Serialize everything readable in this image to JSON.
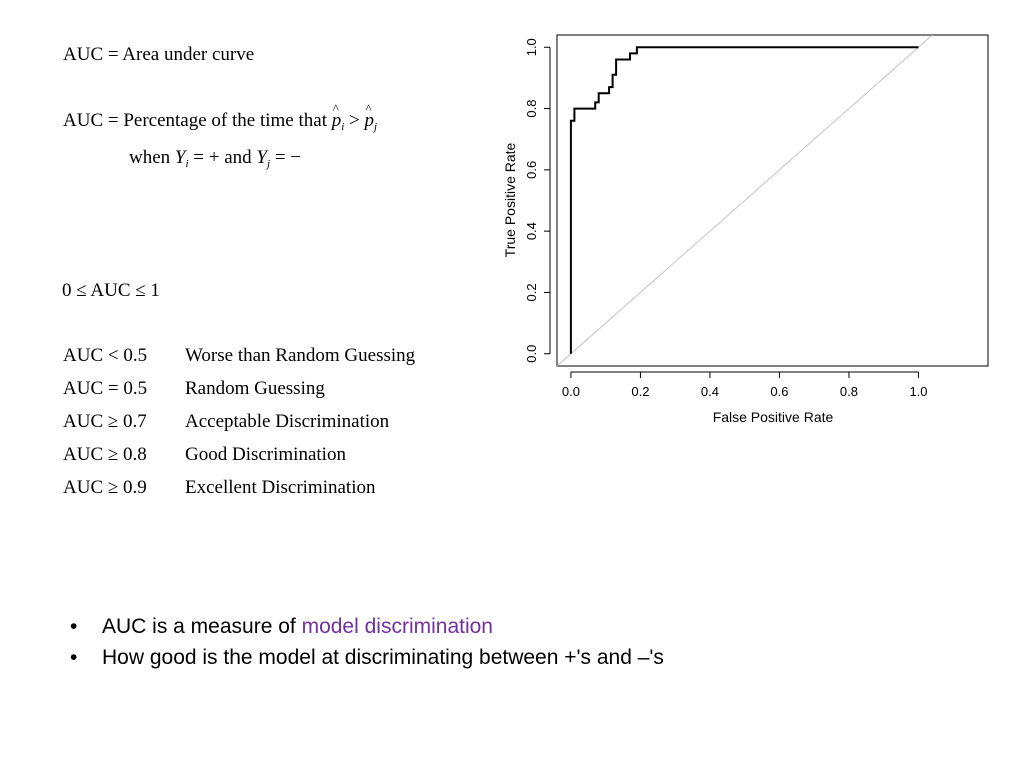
{
  "definitions": {
    "auc_definition": "AUC = Area under curve",
    "percentage_prefix": "AUC = Percentage of the time that",
    "p": "p",
    "sub_i": "i",
    "sub_j": "j",
    "gt": ">",
    "when": "when",
    "Y": "Y",
    "eq_plus": "= +",
    "and": "and",
    "eq_minus": "= −",
    "range": "0 ≤ AUC ≤ 1"
  },
  "rules": [
    {
      "condition": "AUC < 0.5",
      "meaning": "Worse than Random Guessing"
    },
    {
      "condition": "AUC = 0.5",
      "meaning": "Random Guessing"
    },
    {
      "condition": "AUC ≥ 0.7",
      "meaning": "Acceptable Discrimination"
    },
    {
      "condition": "AUC ≥ 0.8",
      "meaning": "Good Discrimination"
    },
    {
      "condition": "AUC ≥ 0.9",
      "meaning": "Excellent Discrimination"
    }
  ],
  "bullets": {
    "marker": "•",
    "item1_prefix": "AUC is a measure of ",
    "item1_highlight": "model discrimination",
    "item2": "How good is the model at discriminating between +'s and –'s"
  },
  "colors": {
    "highlight": "#7030a0",
    "curve": "#000000",
    "diagonal": "#c0c0c0"
  },
  "chart_data": {
    "type": "line",
    "title": "",
    "xlabel": "False Positive Rate",
    "ylabel": "True Positive Rate",
    "xlim": [
      -0.04,
      1.2
    ],
    "ylim": [
      -0.04,
      1.04
    ],
    "xticks": [
      0.0,
      0.2,
      0.4,
      0.6,
      0.8,
      1.0
    ],
    "yticks": [
      0.0,
      0.2,
      0.4,
      0.6,
      0.8,
      1.0
    ],
    "tick_labels": [
      "0.0",
      "0.2",
      "0.4",
      "0.6",
      "0.8",
      "1.0"
    ],
    "grid": false,
    "series": [
      {
        "role": "roc-curve",
        "x": [
          0.0,
          0.0,
          0.01,
          0.01,
          0.07,
          0.07,
          0.08,
          0.08,
          0.11,
          0.11,
          0.12,
          0.12,
          0.13,
          0.13,
          0.14,
          0.14,
          0.17,
          0.17,
          0.19,
          0.19,
          1.0
        ],
        "y": [
          0.0,
          0.76,
          0.76,
          0.8,
          0.8,
          0.82,
          0.82,
          0.85,
          0.85,
          0.87,
          0.87,
          0.91,
          0.91,
          0.96,
          0.96,
          0.96,
          0.96,
          0.98,
          0.98,
          1.0,
          1.0
        ]
      },
      {
        "role": "diagonal-reference",
        "x": [
          -0.04,
          1.04
        ],
        "y": [
          -0.04,
          1.04
        ]
      }
    ]
  }
}
